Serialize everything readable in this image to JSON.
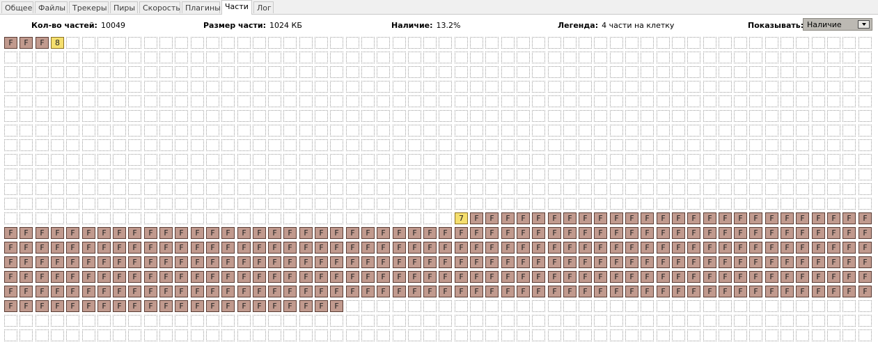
{
  "tabs": [
    {
      "label": "Общее",
      "active": false
    },
    {
      "label": "Файлы",
      "active": false
    },
    {
      "label": "Трекеры",
      "active": false
    },
    {
      "label": "Пиры",
      "active": false
    },
    {
      "label": "Скорость",
      "active": false
    },
    {
      "label": "Плагины",
      "active": false
    },
    {
      "label": "Части",
      "active": true
    },
    {
      "label": "Лог",
      "active": false
    }
  ],
  "info": {
    "count_label": "Кол-во частей:",
    "count_value": "10049",
    "size_label": "Размер части:",
    "size_value": "1024 КБ",
    "availability_label": "Наличие:",
    "availability_value": "13.2%",
    "legend_label": "Легенда:",
    "legend_value": "4 части на клетку",
    "show_label": "Показывать:",
    "show_value": "Наличие"
  },
  "pieces_grid": {
    "columns": 56,
    "visible_rows": 21,
    "full_mark": "F",
    "colors": {
      "full": "#c19a8e",
      "partial": "#f5df6e",
      "empty": "#ffffff"
    },
    "rows": [
      "FFF8",
      "",
      "",
      "",
      "",
      "",
      "",
      "",
      "",
      "",
      "",
      "",
      "ppppppppppppppppppppppppppppp7FFFFFFFFFFFFFFFFFFFFFFFFFF",
      "FFFFFFFFFFFFFFFFFFFFFFFFFFFFFFFFFFFFFFFFFFFFFFFFFFFFFFFF",
      "FFFFFFFFFFFFFFFFFFFFFFFFFFFFFFFFFFFFFFFFFFFFFFFFFFFFFFFF",
      "FFFFFFFFFFFFFFFFFFFFFFFFFFFFFFFFFFFFFFFFFFFFFFFFFFFFFFFF",
      "FFFFFFFFFFFFFFFFFFFFFFFFFFFFFFFFFFFFFFFFFFFFFFFFFFFFFFFF",
      "FFFFFFFFFFFFFFFFFFFFFFFFFFFFFFFFFFFFFFFFFFFFFFFFFFFFFFFF",
      "FFFFFFFFFFFFFFFFFFFFFF",
      ""
    ]
  }
}
